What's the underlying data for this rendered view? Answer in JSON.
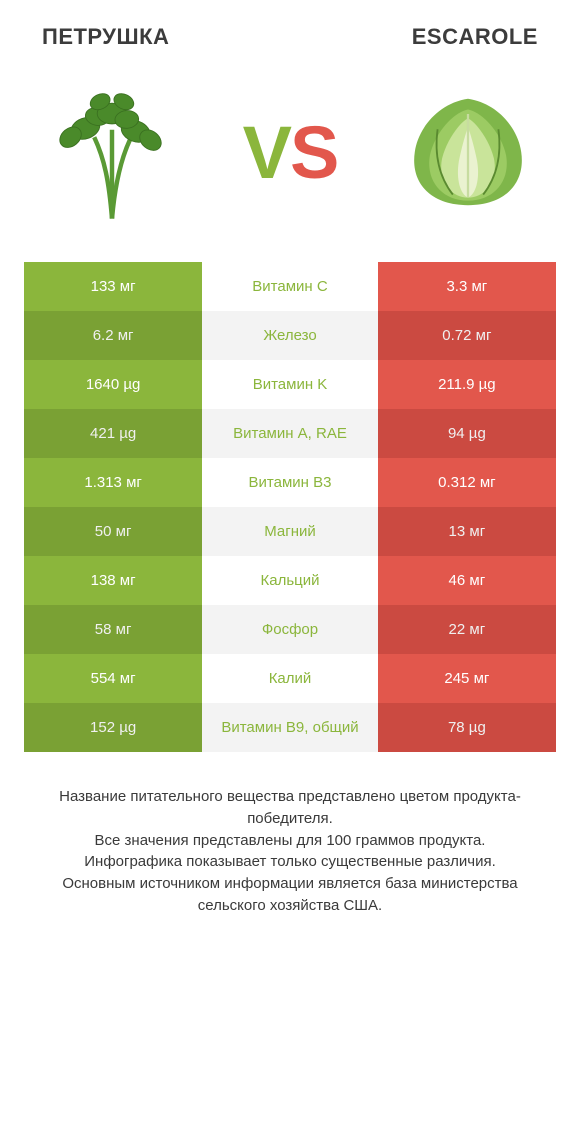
{
  "header": {
    "left_title": "ПЕТРУШКА",
    "right_title": "ESCAROLE"
  },
  "colors": {
    "left": "#8bb63c",
    "right": "#e2574c",
    "mid_text": "#8bb63c",
    "mid_bg_even": "#ffffff",
    "mid_bg_odd": "#f3f3f3",
    "left_alt": "#82ab37",
    "right_alt": "#d84f45",
    "vs_v": "#8bb63c",
    "vs_s": "#e2574c"
  },
  "vs": {
    "v": "V",
    "s": "S"
  },
  "table": {
    "rows": [
      {
        "left": "133 мг",
        "mid": "Витамин C",
        "right": "3.3 мг"
      },
      {
        "left": "6.2 мг",
        "mid": "Железо",
        "right": "0.72 мг"
      },
      {
        "left": "1640 µg",
        "mid": "Витамин K",
        "right": "211.9 µg"
      },
      {
        "left": "421 µg",
        "mid": "Витамин A, RAE",
        "right": "94 µg"
      },
      {
        "left": "1.313 мг",
        "mid": "Витамин B3",
        "right": "0.312 мг"
      },
      {
        "left": "50 мг",
        "mid": "Магний",
        "right": "13 мг"
      },
      {
        "left": "138 мг",
        "mid": "Кальций",
        "right": "46 мг"
      },
      {
        "left": "58 мг",
        "mid": "Фосфор",
        "right": "22 мг"
      },
      {
        "left": "554 мг",
        "mid": "Калий",
        "right": "245 мг"
      },
      {
        "left": "152 µg",
        "mid": "Витамин B9, общий",
        "right": "78 µg"
      }
    ]
  },
  "footer": {
    "line1": "Название питательного вещества представлено цветом продукта-победителя.",
    "line2": "Все значения представлены для 100 граммов продукта.",
    "line3": "Инфографика показывает только существенные различия.",
    "line4": "Основным источником информации является база министерства сельского хозяйства США."
  }
}
